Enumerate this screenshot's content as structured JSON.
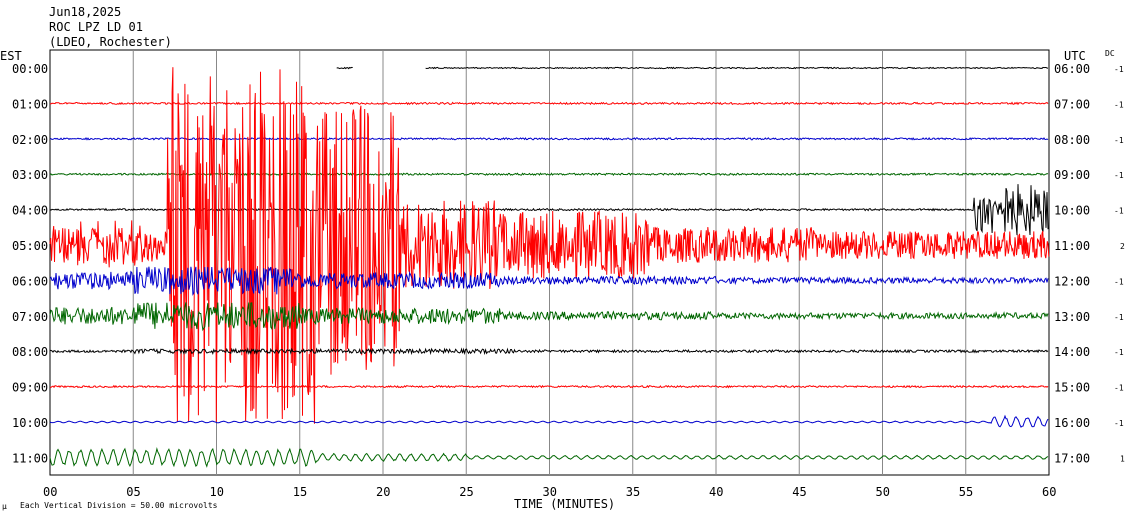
{
  "header": {
    "date": "Jun18,2025",
    "station": "ROC LPZ LD 01",
    "location": "(LDEO, Rochester)"
  },
  "axis": {
    "left_zone": "EST",
    "right_zone": "UTC",
    "dc_header": "DC",
    "xlabel": "TIME (MINUTES)",
    "footer_note": "Each Vertical Division =    50.00 microvolts",
    "footer_mark": "µ"
  },
  "chart_data": {
    "type": "line",
    "title": "",
    "xlabel": "TIME (MINUTES)",
    "xlim": [
      0,
      60
    ],
    "x_ticks": [
      "00",
      "05",
      "10",
      "15",
      "20",
      "25",
      "30",
      "35",
      "40",
      "45",
      "50",
      "55",
      "60"
    ],
    "grid_vertical": true,
    "series": [
      {
        "local_time": "00:00",
        "utc_time": "06:00",
        "dc": "-1",
        "color": "#000000",
        "activity": "gap"
      },
      {
        "local_time": "01:00",
        "utc_time": "07:00",
        "dc": "-1",
        "color": "#ff0000",
        "activity": "quiet"
      },
      {
        "local_time": "02:00",
        "utc_time": "08:00",
        "dc": "-1",
        "color": "#0000cc",
        "activity": "quiet"
      },
      {
        "local_time": "03:00",
        "utc_time": "09:00",
        "dc": "-1",
        "color": "#006600",
        "activity": "quiet"
      },
      {
        "local_time": "04:00",
        "utc_time": "10:00",
        "dc": "-1",
        "color": "#000000",
        "activity": "burst_end"
      },
      {
        "local_time": "05:00",
        "utc_time": "11:00",
        "dc": "2",
        "color": "#ff0000",
        "activity": "earthquake"
      },
      {
        "local_time": "06:00",
        "utc_time": "12:00",
        "dc": "-1",
        "color": "#0000cc",
        "activity": "moderate"
      },
      {
        "local_time": "07:00",
        "utc_time": "13:00",
        "dc": "-1",
        "color": "#006600",
        "activity": "moderate"
      },
      {
        "local_time": "08:00",
        "utc_time": "14:00",
        "dc": "-1",
        "color": "#000000",
        "activity": "small"
      },
      {
        "local_time": "09:00",
        "utc_time": "15:00",
        "dc": "-1",
        "color": "#ff0000",
        "activity": "quiet"
      },
      {
        "local_time": "10:00",
        "utc_time": "16:00",
        "dc": "-1",
        "color": "#0000cc",
        "activity": "quiet_end_wave"
      },
      {
        "local_time": "11:00",
        "utc_time": "17:00",
        "dc": "1",
        "color": "#006600",
        "activity": "surface_wave"
      }
    ]
  }
}
